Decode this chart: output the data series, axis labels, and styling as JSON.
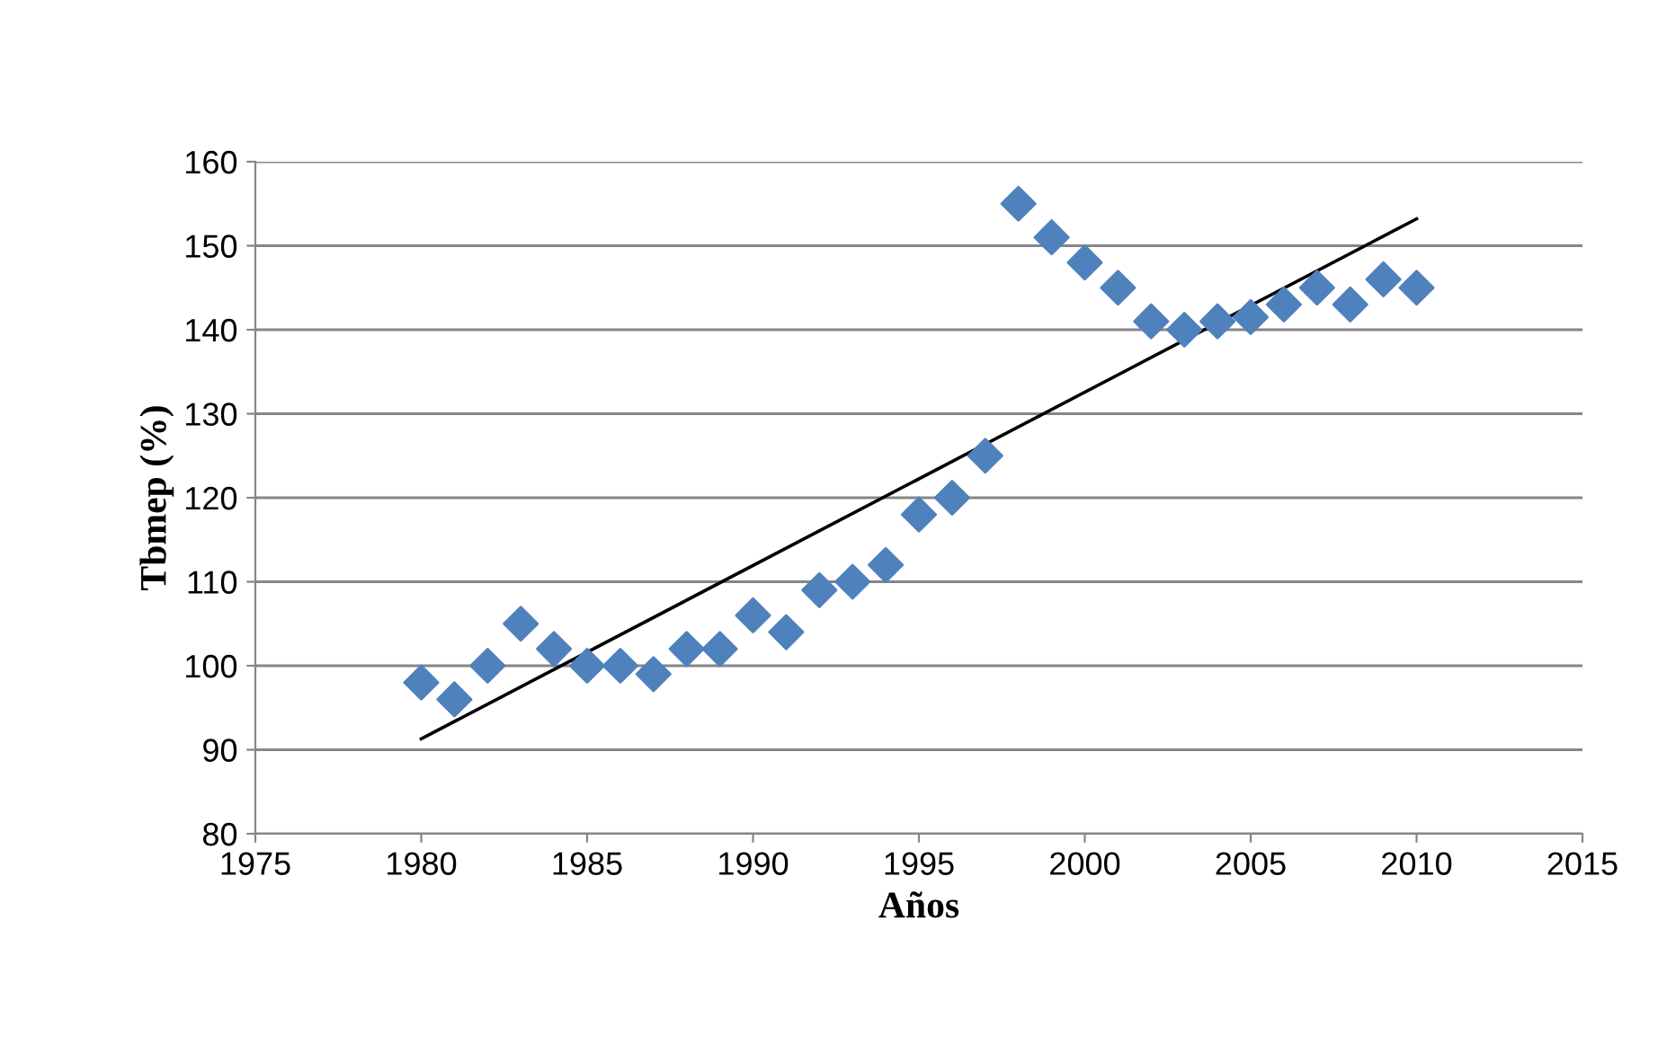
{
  "chart_data": {
    "type": "scatter",
    "xlabel": "Años",
    "ylabel": "Tbmep (%)",
    "xlim": [
      1975,
      2015
    ],
    "xticks": [
      1975,
      1980,
      1985,
      1990,
      1995,
      2000,
      2005,
      2010,
      2015
    ],
    "ylim": [
      80,
      160
    ],
    "yticks": [
      80,
      90,
      100,
      110,
      120,
      130,
      140,
      150,
      160
    ],
    "grid": "y",
    "legend": false,
    "series": [
      {
        "color": "#4f81bd",
        "marker": "diamond",
        "x": [
          1980,
          1981,
          1982,
          1983,
          1984,
          1985,
          1986,
          1987,
          1988,
          1989,
          1990,
          1991,
          1992,
          1993,
          1994,
          1995,
          1996,
          1997,
          1998,
          1999,
          2000,
          2001,
          2002,
          2003,
          2004,
          2005,
          2006,
          2007,
          2008,
          2009,
          2010
        ],
        "values": [
          98,
          96,
          100,
          105,
          102,
          100,
          100,
          99,
          102,
          102,
          106,
          104,
          109,
          110,
          112,
          118,
          120,
          125,
          155,
          151,
          148,
          145,
          141,
          140,
          141,
          141.5,
          143,
          145,
          143,
          146,
          145
        ]
      },
      {
        "type": "line",
        "color": "#000000",
        "marker": "none",
        "line_style": "solid",
        "x": [
          1980,
          2010
        ],
        "values": [
          91.3,
          153.2
        ]
      }
    ]
  }
}
